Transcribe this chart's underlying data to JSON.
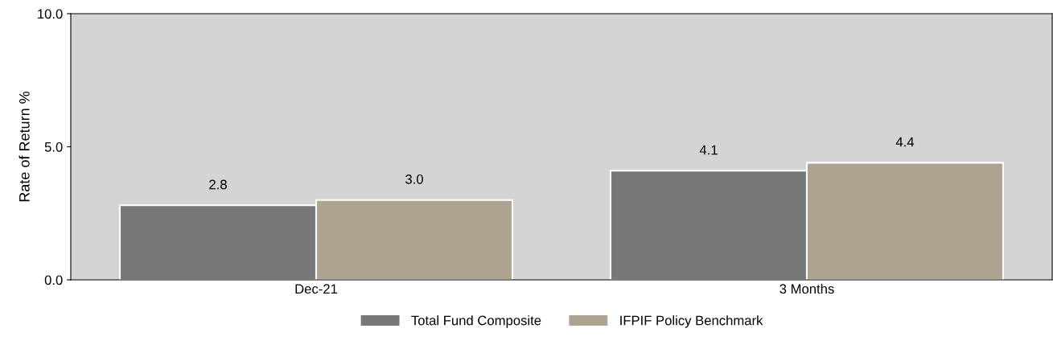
{
  "chart_data": {
    "type": "bar",
    "ylabel": "Rate of Return %",
    "categories": [
      "Dec-21",
      "3 Months"
    ],
    "series": [
      {
        "name": "Total Fund Composite",
        "color": "#787878",
        "values": [
          2.8,
          4.1
        ],
        "value_labels": [
          "2.8",
          "4.1"
        ]
      },
      {
        "name": "IFPIF Policy Benchmark",
        "color": "#afa491",
        "values": [
          3.0,
          4.4
        ],
        "value_labels": [
          "3.0",
          "4.4"
        ]
      }
    ],
    "ylim": [
      0,
      10
    ],
    "yticks": [
      {
        "value": 0,
        "label": "0.0"
      },
      {
        "value": 5,
        "label": "5.0"
      },
      {
        "value": 10,
        "label": "10.0"
      }
    ],
    "grid": false,
    "legend": "bottom"
  }
}
